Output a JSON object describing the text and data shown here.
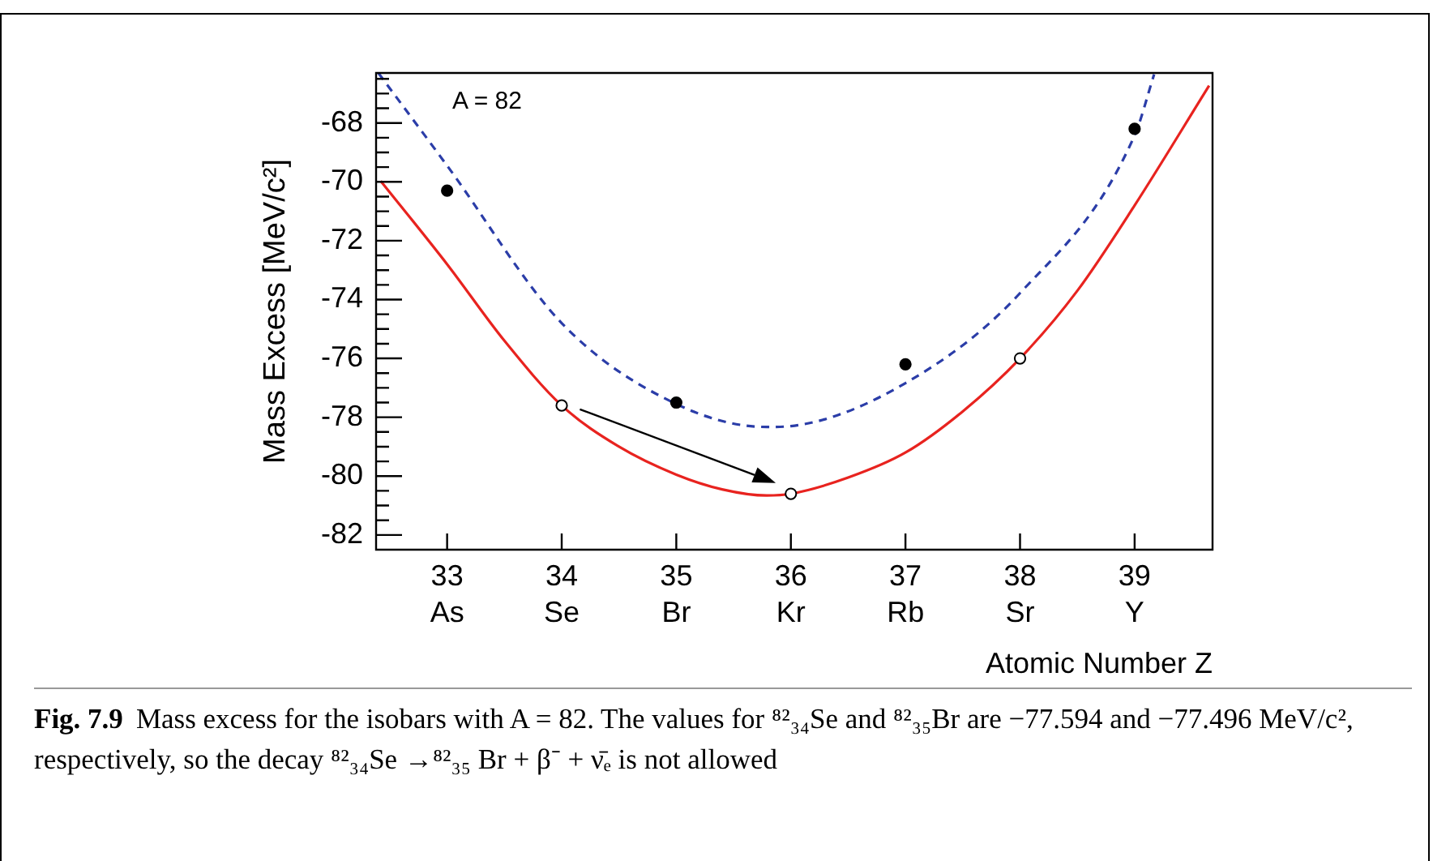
{
  "chart_data": {
    "type": "line",
    "xlabel": "Atomic Number Z",
    "ylabel": "Mass Excess [MeV/c²]",
    "xlim": [
      32.38,
      39.68
    ],
    "ylim": [
      -82.5,
      -66.3
    ],
    "xticks": [
      {
        "value": 33,
        "label": "33\nAs"
      },
      {
        "value": 34,
        "label": "34\nSe"
      },
      {
        "value": 35,
        "label": "35\nBr"
      },
      {
        "value": 36,
        "label": "36\nKr"
      },
      {
        "value": 37,
        "label": "37\nRb"
      },
      {
        "value": 38,
        "label": "38\nSr"
      },
      {
        "value": 39,
        "label": "39\nY"
      }
    ],
    "yticks": [
      -82,
      {
        "value": -81.5,
        "label": null
      },
      {
        "value": -81,
        "label": null
      },
      {
        "value": -80.5,
        "label": null
      },
      -80,
      {
        "value": -79.5,
        "label": null
      },
      {
        "value": -79,
        "label": null
      },
      {
        "value": -78.5,
        "label": null
      },
      -78,
      {
        "value": -77.5,
        "label": null
      },
      {
        "value": -77,
        "label": null
      },
      {
        "value": -76.5,
        "label": null
      },
      -76,
      {
        "value": -75.5,
        "label": null
      },
      {
        "value": -75,
        "label": null
      },
      {
        "value": -74.5,
        "label": null
      },
      -74,
      {
        "value": -73.5,
        "label": null
      },
      {
        "value": -73,
        "label": null
      },
      {
        "value": -72.5,
        "label": null
      },
      -72,
      {
        "value": -71.5,
        "label": null
      },
      {
        "value": -71,
        "label": null
      },
      {
        "value": -70.5,
        "label": null
      },
      -70,
      {
        "value": -69.5,
        "label": null
      },
      {
        "value": -69,
        "label": null
      },
      {
        "value": -68.5,
        "label": null
      },
      -68,
      {
        "value": -67.5,
        "label": null
      },
      {
        "value": -67,
        "label": null
      },
      {
        "value": -66.5,
        "label": null
      }
    ],
    "grid": false,
    "legend": false,
    "series": [
      {
        "color": "#e8231f",
        "line_style": "solid",
        "marker": "none",
        "x": [
          32.42,
          33,
          33.5,
          34,
          34.5,
          35,
          35.4,
          35.79,
          36,
          36.5,
          37,
          37.5,
          38,
          38.5,
          39,
          39.65
        ],
        "values": [
          -69.97,
          -72.8,
          -75.4,
          -77.6,
          -79.0,
          -79.95,
          -80.45,
          -80.66,
          -80.6,
          -80.05,
          -79.2,
          -77.8,
          -76.0,
          -73.7,
          -70.8,
          -66.73
        ]
      },
      {
        "color": "#2b3da8",
        "line_style": "dashed",
        "marker": "none",
        "x": [
          32.4,
          33,
          34,
          35,
          35.79,
          36,
          37,
          38,
          39,
          39.17
        ],
        "values": [
          -66.3,
          -69.45,
          -74.8,
          -77.55,
          -78.33,
          -78.3,
          -76.84,
          -73.78,
          -68.42,
          -66.35
        ]
      },
      {
        "type": "scatter",
        "color": "#000000",
        "marker": "circle",
        "x": [
          33,
          35,
          37,
          39
        ],
        "values": [
          -70.3,
          -77.5,
          -76.2,
          -68.2
        ]
      },
      {
        "type": "scatter",
        "color": "#ffffff",
        "marker": "circle",
        "x": [
          34,
          36,
          38
        ],
        "values": [
          -77.6,
          -80.6,
          -76.0
        ]
      }
    ],
    "annotations": [
      "A = 82",
      "Fig. 7.9",
      "Mass excess for the isobars with A = 82. The values for ⁸²₃₄Se and ⁸²₃₅Br are −77.594 and −77.496 MeV/c², respectively, so the decay ⁸²₃₄Se →⁸²₃₅ Br + β⁻ + ν̄ₑ is not allowed"
    ]
  }
}
